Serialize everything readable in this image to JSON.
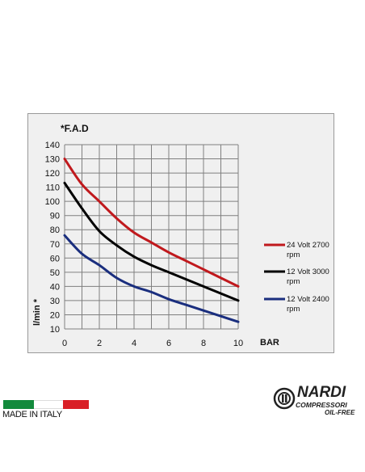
{
  "chart_data": {
    "type": "line",
    "title": "*F.A.D",
    "xlabel": "BAR",
    "ylabel": "l/min *",
    "xlim": [
      0,
      10
    ],
    "ylim": [
      10,
      140
    ],
    "x_ticks": [
      0,
      2,
      4,
      6,
      8,
      10
    ],
    "y_ticks": [
      10,
      20,
      30,
      40,
      50,
      60,
      70,
      80,
      90,
      100,
      110,
      120,
      130,
      140
    ],
    "grid": true,
    "legend_position": "right",
    "series": [
      {
        "name_line1": "24 Volt 2700",
        "name_line2": "rpm",
        "color": "#c0191d",
        "x": [
          0,
          1,
          2,
          3,
          4,
          5,
          6,
          7,
          8,
          9,
          10
        ],
        "y": [
          130,
          112,
          100,
          88,
          78,
          71,
          64,
          58,
          52,
          46,
          40
        ]
      },
      {
        "name_line1": "12 Volt 3000",
        "name_line2": "rpm",
        "color": "#000000",
        "x": [
          0,
          1,
          2,
          3,
          4,
          5,
          6,
          7,
          8,
          9,
          10
        ],
        "y": [
          113,
          95,
          79,
          69,
          61,
          55,
          50,
          45,
          40,
          35,
          30
        ]
      },
      {
        "name_line1": "12 Volt 2400",
        "name_line2": "rpm",
        "color": "#1a2e7e",
        "x": [
          0,
          1,
          2,
          3,
          4,
          5,
          6,
          7,
          8,
          9,
          10
        ],
        "y": [
          76,
          63,
          55,
          46,
          40,
          36,
          31,
          27,
          23,
          19,
          15
        ]
      }
    ]
  },
  "footer": {
    "made_in": "MADE IN ITALY",
    "brand_name": "NARDI",
    "brand_sub": "COMPRESSORI",
    "brand_tag": "OIL-FREE",
    "flag_colors": [
      "#128a3c",
      "#ffffff",
      "#d91f26"
    ]
  }
}
